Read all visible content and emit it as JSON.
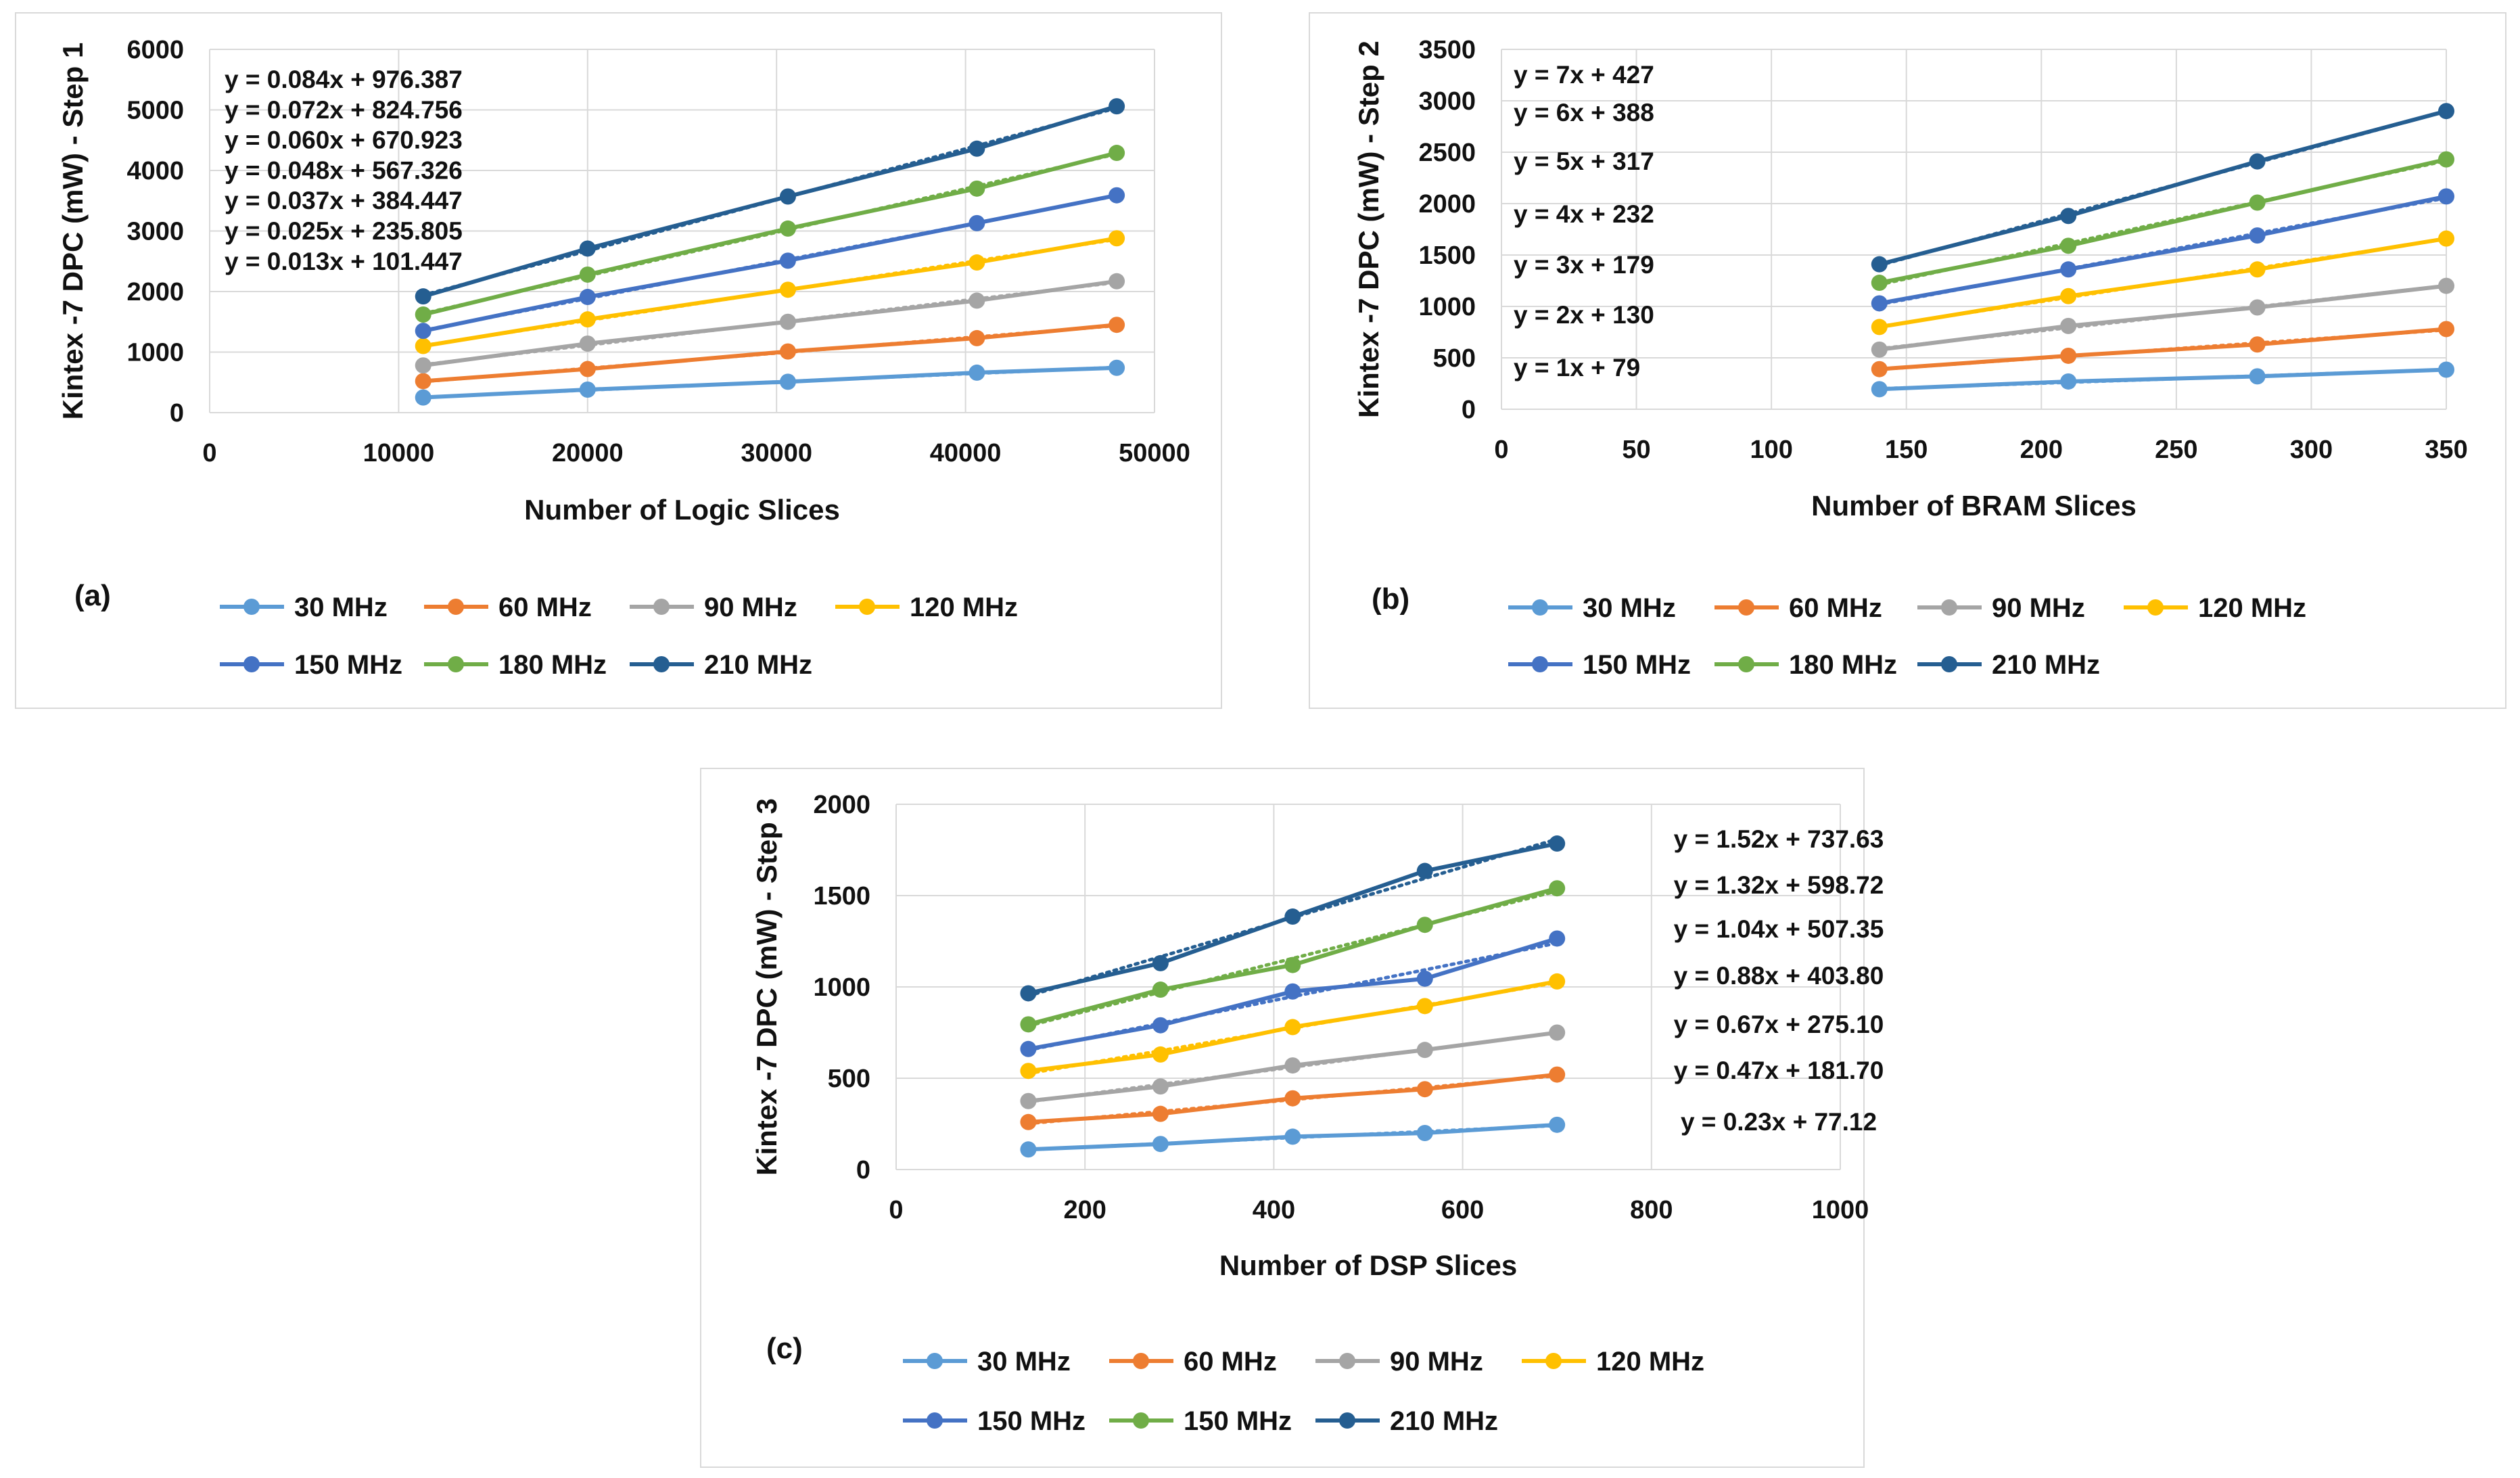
{
  "charts": [
    {
      "panel_label": "(a)",
      "chart_data": {
        "type": "line",
        "xlabel": "Number of Logic Slices",
        "ylabel": "Kintex -7 DPC (mW) - Step 1",
        "xlim": [
          0,
          50000
        ],
        "ylim": [
          0,
          6000
        ],
        "xticks": [
          "0",
          "10000",
          "20000",
          "30000",
          "40000",
          "50000"
        ],
        "yticks": [
          "0",
          "1000",
          "2000",
          "3000",
          "4000",
          "5000",
          "6000"
        ],
        "x": [
          11300,
          20000,
          30600,
          40600,
          48000
        ],
        "series": [
          {
            "name": "30 MHz",
            "color": "#5b9bd5",
            "values": [
              250,
              380,
              510,
              660,
              740
            ]
          },
          {
            "name": "60 MHz",
            "color": "#ed7d31",
            "values": [
              520,
              720,
              1010,
              1230,
              1450
            ]
          },
          {
            "name": "90 MHz",
            "color": "#a5a5a5",
            "values": [
              780,
              1140,
              1500,
              1850,
              2170
            ]
          },
          {
            "name": "120 MHz",
            "color": "#ffc000",
            "values": [
              1100,
              1540,
              2030,
              2480,
              2880
            ]
          },
          {
            "name": "150 MHz",
            "color": "#4472c4",
            "values": [
              1350,
              1910,
              2510,
              3130,
              3590
            ]
          },
          {
            "name": "180 MHz",
            "color": "#70ad47",
            "values": [
              1620,
              2280,
              3040,
              3700,
              4290
            ]
          },
          {
            "name": "210 MHz",
            "color": "#255e91",
            "values": [
              1920,
              2710,
              3570,
              4360,
              5060
            ]
          }
        ],
        "equations": [
          "y = 0.084x + 976.387",
          "y = 0.072x + 824.756",
          "y = 0.060x + 670.923",
          "y = 0.048x + 567.326",
          "y = 0.037x + 384.447",
          "y = 0.025x + 235.805",
          "y = 0.013x + 101.447"
        ]
      }
    },
    {
      "panel_label": "(b)",
      "chart_data": {
        "type": "line",
        "xlabel": "Number of BRAM  Slices",
        "ylabel": "Kintex -7 DPC (mW) - Step 2",
        "xlim": [
          0,
          350
        ],
        "ylim": [
          0,
          3500
        ],
        "xticks": [
          "0",
          "50",
          "100",
          "150",
          "200",
          "250",
          "300",
          "350"
        ],
        "yticks": [
          "0",
          "500",
          "1000",
          "1500",
          "2000",
          "2500",
          "3000",
          "3500"
        ],
        "x": [
          140,
          210,
          280,
          350
        ],
        "series": [
          {
            "name": "30 MHz",
            "color": "#5b9bd5",
            "values": [
              195,
              270,
              320,
              385
            ]
          },
          {
            "name": "60 MHz",
            "color": "#ed7d31",
            "values": [
              390,
              520,
              630,
              780
            ]
          },
          {
            "name": "90 MHz",
            "color": "#a5a5a5",
            "values": [
              580,
              810,
              990,
              1200
            ]
          },
          {
            "name": "120 MHz",
            "color": "#ffc000",
            "values": [
              800,
              1100,
              1360,
              1660
            ]
          },
          {
            "name": "150 MHz",
            "color": "#4472c4",
            "values": [
              1030,
              1360,
              1690,
              2070
            ]
          },
          {
            "name": "180 MHz",
            "color": "#70ad47",
            "values": [
              1230,
              1590,
              2010,
              2430
            ]
          },
          {
            "name": "210 MHz",
            "color": "#255e91",
            "values": [
              1410,
              1880,
              2410,
              2900
            ]
          }
        ],
        "equations": [
          "y = 7x + 427",
          "y = 6x + 388",
          "y = 5x + 317",
          "y = 4x + 232",
          "y = 3x + 179",
          "y = 2x + 130",
          "y = 1x + 79"
        ]
      }
    },
    {
      "panel_label": "(c)",
      "chart_data": {
        "type": "line",
        "xlabel": "Number of DSP Slices",
        "ylabel": "Kintex -7 DPC (mW) - Step  3",
        "xlim": [
          0,
          1000
        ],
        "ylim": [
          0,
          2000
        ],
        "xticks": [
          "0",
          "200",
          "400",
          "600",
          "800",
          "1000"
        ],
        "yticks": [
          "0",
          "500",
          "1000",
          "1500",
          "2000"
        ],
        "x": [
          140,
          280,
          420,
          560,
          700
        ],
        "series": [
          {
            "name": "30 MHz",
            "color": "#5b9bd5",
            "values": [
              110,
              140,
              180,
              200,
              245
            ]
          },
          {
            "name": "60 MHz",
            "color": "#ed7d31",
            "values": [
              260,
              305,
              390,
              440,
              520
            ]
          },
          {
            "name": "90 MHz",
            "color": "#a5a5a5",
            "values": [
              375,
              455,
              570,
              655,
              750
            ]
          },
          {
            "name": "120 MHz",
            "color": "#ffc000",
            "values": [
              540,
              630,
              780,
              895,
              1030
            ]
          },
          {
            "name": "150 MHz",
            "color": "#4472c4",
            "values": [
              660,
              790,
              975,
              1045,
              1265
            ]
          },
          {
            "name": "150 MHz",
            "color": "#70ad47",
            "values": [
              795,
              985,
              1120,
              1340,
              1540
            ]
          },
          {
            "name": "210 MHz",
            "color": "#255e91",
            "values": [
              965,
              1130,
              1385,
              1635,
              1785
            ]
          }
        ],
        "equations": [
          "y = 1.52x + 737.63",
          "y = 1.32x + 598.72",
          "y = 1.04x + 507.35",
          "y = 0.88x + 403.80",
          "y = 0.67x + 275.10",
          "y = 0.47x + 181.70",
          "y = 0.23x + 77.12"
        ]
      }
    }
  ]
}
